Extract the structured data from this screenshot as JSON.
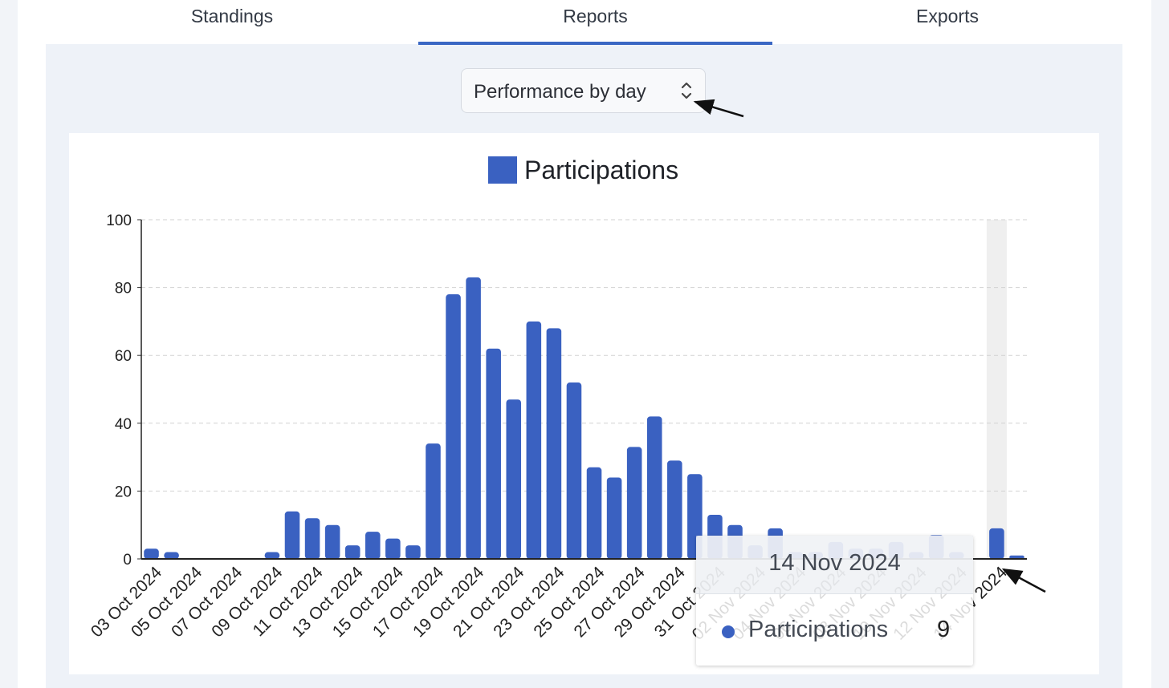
{
  "tabs": [
    {
      "label": "Standings",
      "active": false
    },
    {
      "label": "Reports",
      "active": true
    },
    {
      "label": "Exports",
      "active": false
    }
  ],
  "report_select": {
    "value": "Performance by day",
    "icon": "chevron-up-down-icon"
  },
  "colors": {
    "accent": "#3a67c4",
    "bar": "#3a61c1",
    "panel": "#eef2f8"
  },
  "tooltip": {
    "date": "14 Nov 2024",
    "series": "Participations",
    "value": "9"
  },
  "chart_data": {
    "type": "bar",
    "legend": "Participations",
    "legend_position": "top",
    "categories": [
      "03 Oct 2024",
      "04 Oct 2024",
      "05 Oct 2024",
      "06 Oct 2024",
      "07 Oct 2024",
      "08 Oct 2024",
      "09 Oct 2024",
      "10 Oct 2024",
      "11 Oct 2024",
      "12 Oct 2024",
      "13 Oct 2024",
      "14 Oct 2024",
      "15 Oct 2024",
      "16 Oct 2024",
      "17 Oct 2024",
      "18 Oct 2024",
      "19 Oct 2024",
      "20 Oct 2024",
      "21 Oct 2024",
      "22 Oct 2024",
      "23 Oct 2024",
      "24 Oct 2024",
      "25 Oct 2024",
      "26 Oct 2024",
      "27 Oct 2024",
      "28 Oct 2024",
      "29 Oct 2024",
      "30 Oct 2024",
      "31 Oct 2024",
      "01 Nov 2024",
      "02 Nov 2024",
      "03 Nov 2024",
      "04 Nov 2024",
      "05 Nov 2024",
      "06 Nov 2024",
      "07 Nov 2024",
      "08 Nov 2024",
      "09 Nov 2024",
      "10 Nov 2024",
      "11 Nov 2024",
      "12 Nov 2024",
      "13 Nov 2024",
      "14 Nov 2024",
      "15 Nov 2024"
    ],
    "tick_labels": [
      "03 Oct 2024",
      "05 Oct 2024",
      "07 Oct 2024",
      "09 Oct 2024",
      "11 Oct 2024",
      "13 Oct 2024",
      "15 Oct 2024",
      "17 Oct 2024",
      "19 Oct 2024",
      "21 Oct 2024",
      "23 Oct 2024",
      "25 Oct 2024",
      "27 Oct 2024",
      "29 Oct 2024",
      "31 Oct 2024",
      "02 Nov 2024",
      "04 Nov 2024",
      "06 Nov 2024",
      "08 Nov 2024",
      "10 Nov 2024",
      "12 Nov 2024",
      "14 Nov 2024"
    ],
    "values": [
      3,
      2,
      0,
      0,
      0,
      0,
      2,
      14,
      12,
      10,
      4,
      8,
      6,
      4,
      34,
      78,
      83,
      62,
      47,
      70,
      68,
      52,
      27,
      24,
      33,
      42,
      29,
      25,
      13,
      10,
      4,
      9,
      2,
      2,
      5,
      3,
      3,
      5,
      2,
      7,
      2,
      0,
      9,
      1
    ],
    "yticks": [
      0,
      20,
      40,
      60,
      80,
      100
    ],
    "ylim": [
      0,
      100
    ],
    "grid": true,
    "highlighted": "14 Nov 2024"
  }
}
